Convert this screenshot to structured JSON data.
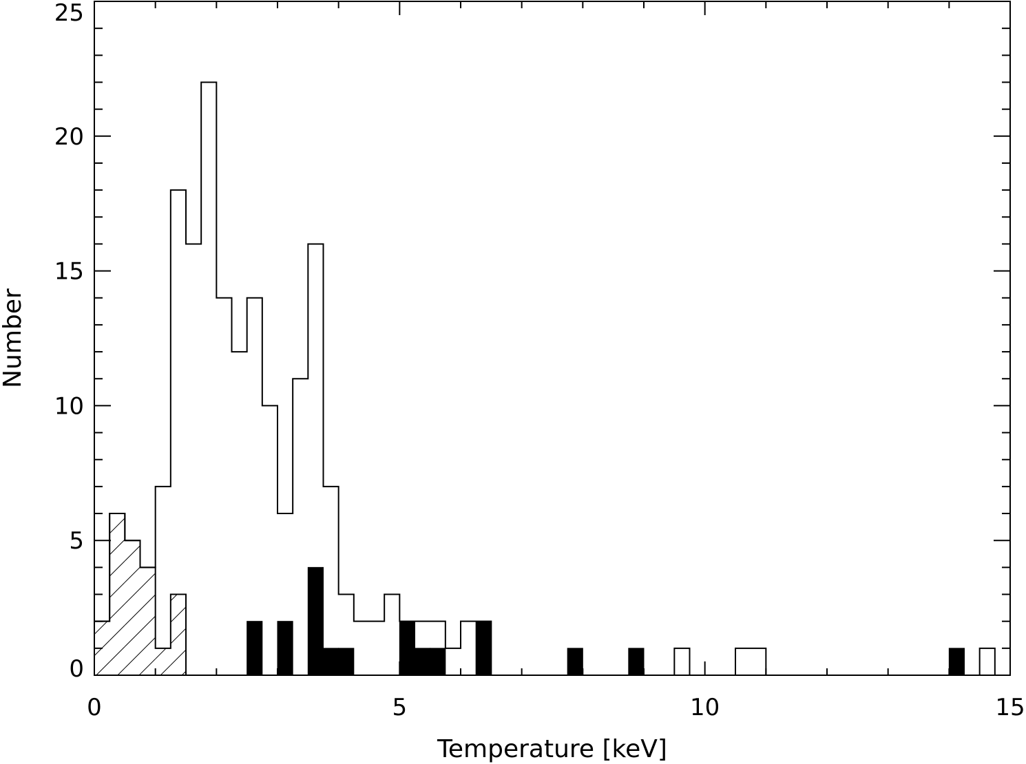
{
  "chart_data": {
    "type": "bar",
    "xlabel": "Temperature [keV]",
    "ylabel": "Number",
    "xlim": [
      0,
      15
    ],
    "ylim": [
      0,
      25
    ],
    "grid": false,
    "bin_width": 0.25,
    "x_ticks": [
      "0",
      "5",
      "10",
      "15"
    ],
    "y_ticks": [
      "0",
      "5",
      "10",
      "15",
      "20",
      "25"
    ],
    "series": [
      {
        "style": "outline",
        "bins": [
          [
            0.0,
            2
          ],
          [
            0.25,
            6
          ],
          [
            0.5,
            5
          ],
          [
            0.75,
            4
          ],
          [
            1.0,
            7
          ],
          [
            1.25,
            18
          ],
          [
            1.5,
            16
          ],
          [
            1.75,
            22
          ],
          [
            2.0,
            14
          ],
          [
            2.25,
            12
          ],
          [
            2.5,
            14
          ],
          [
            2.75,
            10
          ],
          [
            3.0,
            6
          ],
          [
            3.25,
            11
          ],
          [
            3.5,
            16
          ],
          [
            3.75,
            7
          ],
          [
            4.0,
            3
          ],
          [
            4.25,
            2
          ],
          [
            4.5,
            2
          ],
          [
            4.75,
            3
          ],
          [
            5.0,
            2
          ],
          [
            5.25,
            2
          ],
          [
            5.5,
            2
          ],
          [
            5.75,
            1
          ],
          [
            6.0,
            2
          ],
          [
            6.25,
            2
          ],
          [
            9.5,
            1
          ],
          [
            10.5,
            1
          ],
          [
            10.75,
            1
          ],
          [
            14.5,
            1
          ]
        ]
      },
      {
        "style": "hatched",
        "bins": [
          [
            0.0,
            2
          ],
          [
            0.25,
            6
          ],
          [
            0.5,
            5
          ],
          [
            0.75,
            4
          ],
          [
            1.0,
            1
          ],
          [
            1.25,
            3
          ]
        ]
      },
      {
        "style": "filled",
        "bins": [
          [
            2.5,
            2
          ],
          [
            3.0,
            2
          ],
          [
            3.5,
            4
          ],
          [
            3.75,
            1
          ],
          [
            4.0,
            1
          ],
          [
            5.0,
            2
          ],
          [
            5.25,
            1
          ],
          [
            5.5,
            1
          ],
          [
            6.25,
            2
          ],
          [
            7.75,
            1
          ],
          [
            8.75,
            1
          ],
          [
            14.0,
            1
          ]
        ]
      }
    ]
  }
}
